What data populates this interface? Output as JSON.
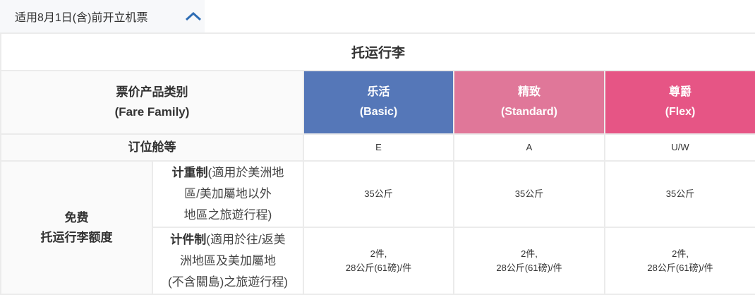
{
  "toggle": {
    "label": "适用8月1日(含)前开立机票",
    "icon": "chevron-up-icon",
    "icon_color": "#2e6db4"
  },
  "table": {
    "title": "托运行李",
    "fare_family_label": "票价产品类别",
    "fare_family_label_en": "(Fare Family)",
    "families": [
      {
        "name": "乐活",
        "en": "(Basic)",
        "color": "#5577b8",
        "booking_class": "E",
        "weight_allowance": "35公斤",
        "piece_count": "2件,",
        "piece_detail": "28公斤(61磅)/件"
      },
      {
        "name": "精致",
        "en": "(Standard)",
        "color": "#e07799",
        "booking_class": "A",
        "weight_allowance": "35公斤",
        "piece_count": "2件,",
        "piece_detail": "28公斤(61磅)/件"
      },
      {
        "name": "尊爵",
        "en": "(Flex)",
        "color": "#e65585",
        "booking_class": "U/W",
        "weight_allowance": "35公斤",
        "piece_count": "2件,",
        "piece_detail": "28公斤(61磅)/件"
      }
    ],
    "booking_class_label": "订位舱等",
    "allowance_label_1": "免费",
    "allowance_label_2": "托运行李额度",
    "weight_system": {
      "bold": "计重制",
      "l1": "(適用於美洲地",
      "l2": "區/美加屬地以外",
      "l3": "地區之旅遊行程)"
    },
    "piece_system": {
      "bold": "计件制",
      "l1": "(適用於往/返美",
      "l2": "洲地區及美加屬地",
      "l3": "(不含關島)之旅遊行程)"
    }
  }
}
